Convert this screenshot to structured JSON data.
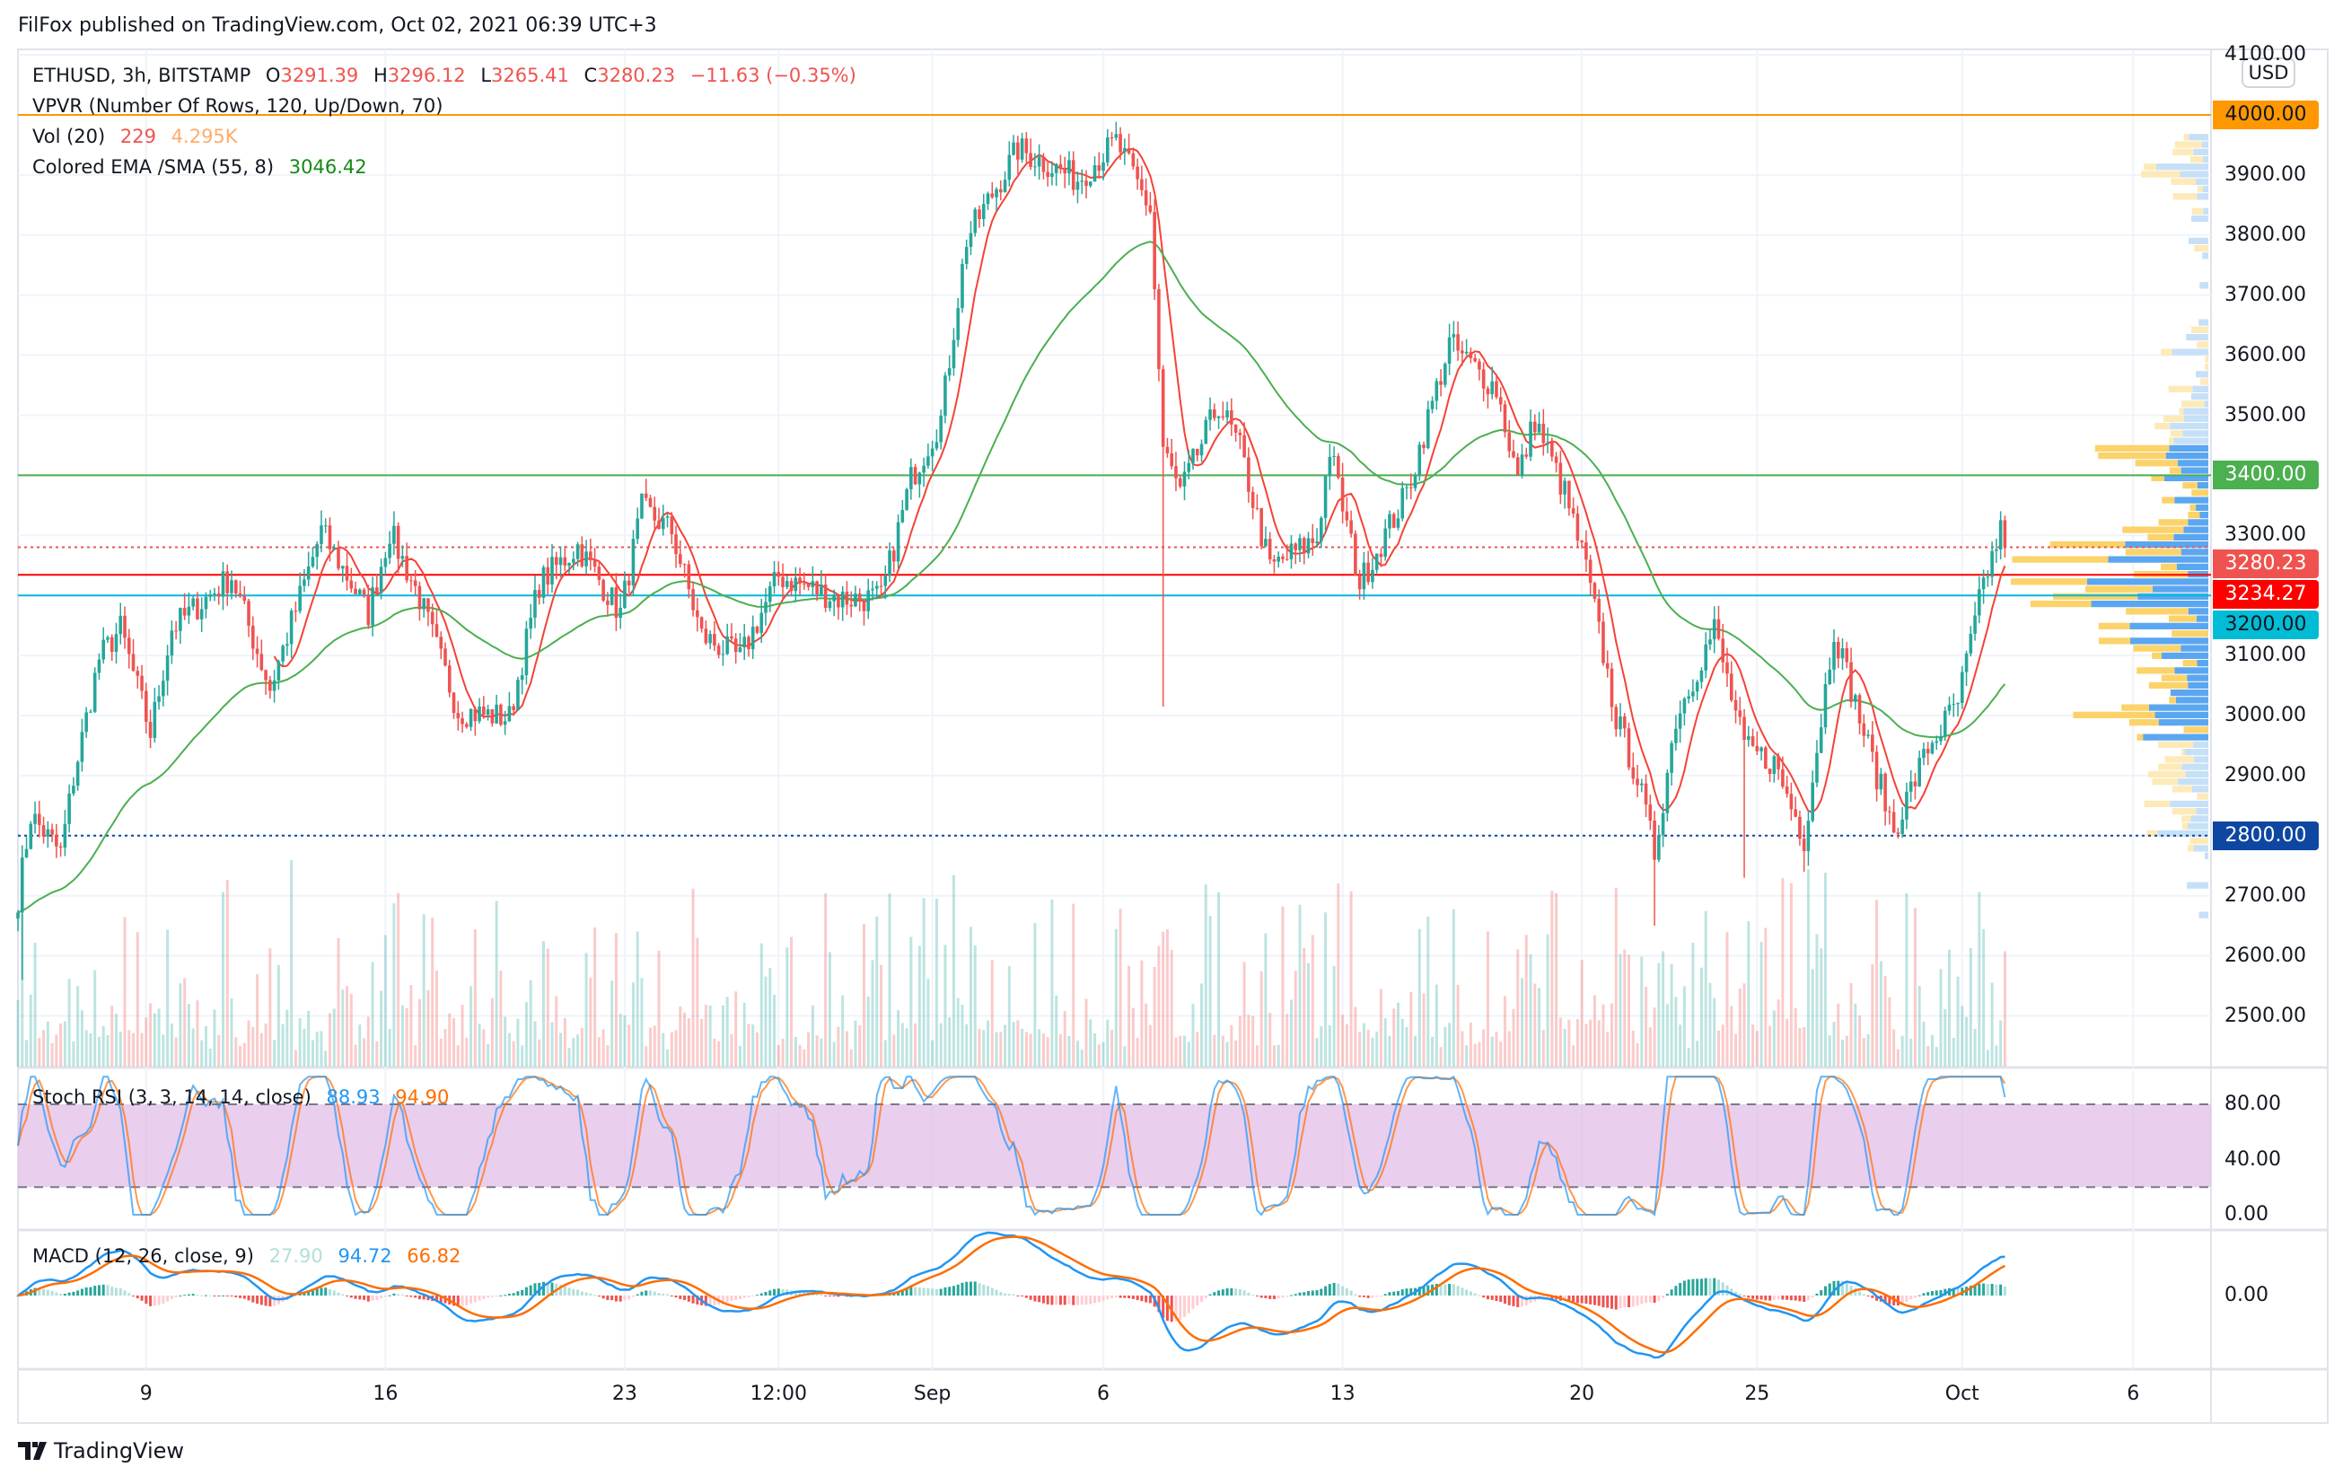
{
  "publish_line": "FilFox published on TradingView.com, Oct 02, 2021 06:39 UTC+3",
  "legend": {
    "symbol": "ETHUSD, 3h, BITSTAMP",
    "o_label": "O",
    "o": "3291.39",
    "h_label": "H",
    "h": "3296.12",
    "l_label": "L",
    "l": "3265.41",
    "c_label": "C",
    "c": "3280.23",
    "change": "−11.63 (−0.35%)",
    "vpvr": "VPVR (Number Of Rows, 120, Up/Down, 70)",
    "vol_label": "Vol (20)",
    "vol_value": "229",
    "vol_ma": "4.295K",
    "ema_label": "Colored EMA /SMA (55, 8)",
    "ema_value": "3046.42",
    "stoch_label": "Stoch RSI (3, 3, 14, 14, close)",
    "stoch_k": "88.93",
    "stoch_d": "94.90",
    "macd_label": "MACD (12, 26, close, 9)",
    "macd_hist": "27.90",
    "macd_line": "94.72",
    "macd_signal": "66.82"
  },
  "currency": "USD",
  "brand": "TradingView",
  "colors": {
    "up": "#26a69a",
    "down": "#ef5350",
    "ema": "#4caf50",
    "sma": "#f44336",
    "stoch_k": "#2196f3",
    "stoch_d": "#ff6d00",
    "macd": "#2196f3",
    "signal": "#ff6d00",
    "stoch_band": "#e1bee7"
  },
  "chart_data": {
    "type": "candlestick",
    "interval": "3h",
    "price_axis_ticks": [
      "4100.00",
      "3900.00",
      "3800.00",
      "3700.00",
      "3600.00",
      "3500.00",
      "3300.00",
      "3100.00",
      "3000.00",
      "2900.00",
      "2700.00",
      "2600.00",
      "2500.00"
    ],
    "price_range": [
      2470,
      4120
    ],
    "horizontal_levels": [
      {
        "price": 4000,
        "label": "4000.00",
        "color": "#ff9800",
        "style": "solid"
      },
      {
        "price": 3400,
        "label": "3400.00",
        "color": "#4caf50",
        "style": "solid"
      },
      {
        "price": 3280.23,
        "label": "3280.23",
        "color": "#ef5350",
        "style": "dotted"
      },
      {
        "price": 3234.27,
        "label": "3234.27",
        "color": "#ff0000",
        "style": "solid"
      },
      {
        "price": 3200,
        "label": "3200.00",
        "color": "#00bcd4",
        "style": "solid"
      },
      {
        "price": 2800,
        "label": "2800.00",
        "color": "#0d47a1",
        "style": "dotted"
      }
    ],
    "close_waypoints": [
      [
        0,
        2697
      ],
      [
        3,
        2834
      ],
      [
        10,
        2771
      ],
      [
        13,
        2896
      ],
      [
        19,
        3095
      ],
      [
        24,
        3145
      ],
      [
        31,
        2971
      ],
      [
        36,
        3145
      ],
      [
        50,
        3232
      ],
      [
        59,
        3045
      ],
      [
        71,
        3307
      ],
      [
        82,
        3170
      ],
      [
        87,
        3307
      ],
      [
        94,
        3195
      ],
      [
        103,
        3008
      ],
      [
        115,
        2996
      ],
      [
        122,
        3220
      ],
      [
        131,
        3282
      ],
      [
        141,
        3170
      ],
      [
        146,
        3345
      ],
      [
        153,
        3307
      ],
      [
        160,
        3133
      ],
      [
        169,
        3095
      ],
      [
        178,
        3232
      ],
      [
        192,
        3195
      ],
      [
        202,
        3195
      ],
      [
        209,
        3394
      ],
      [
        216,
        3494
      ],
      [
        222,
        3793
      ],
      [
        234,
        3943
      ],
      [
        248,
        3893
      ],
      [
        257,
        3955
      ],
      [
        265,
        3843
      ],
      [
        268,
        3444
      ],
      [
        272,
        3370
      ],
      [
        281,
        3519
      ],
      [
        286,
        3444
      ],
      [
        293,
        3245
      ],
      [
        304,
        3295
      ],
      [
        307,
        3444
      ],
      [
        314,
        3220
      ],
      [
        325,
        3370
      ],
      [
        335,
        3619
      ],
      [
        346,
        3544
      ],
      [
        351,
        3394
      ],
      [
        355,
        3494
      ],
      [
        362,
        3370
      ],
      [
        367,
        3245
      ],
      [
        374,
        2996
      ],
      [
        379,
        2896
      ],
      [
        383,
        2771
      ],
      [
        388,
        2996
      ],
      [
        397,
        3145
      ],
      [
        404,
        2946
      ],
      [
        411,
        2921
      ],
      [
        418,
        2796
      ],
      [
        425,
        3145
      ],
      [
        432,
        2971
      ],
      [
        439,
        2809
      ],
      [
        447,
        2946
      ],
      [
        454,
        3021
      ],
      [
        460,
        3220
      ],
      [
        464,
        3307
      ],
      [
        465,
        3280.23
      ]
    ],
    "time_ticks": [
      {
        "bar": 30,
        "label": "9"
      },
      {
        "bar": 86,
        "label": "16"
      },
      {
        "bar": 142,
        "label": "23"
      },
      {
        "bar": 178,
        "label": "12:00"
      },
      {
        "bar": 214,
        "label": "Sep"
      },
      {
        "bar": 254,
        "label": "6"
      },
      {
        "bar": 310,
        "label": "13"
      },
      {
        "bar": 366,
        "label": "20"
      },
      {
        "bar": 407,
        "label": "25"
      },
      {
        "bar": 455,
        "label": "Oct"
      },
      {
        "bar": 495,
        "label": "6"
      }
    ],
    "stoch_axis_ticks": [
      "80.00",
      "40.00",
      "0.00"
    ],
    "stoch_band": [
      20,
      80
    ],
    "macd_axis_ticks": [
      "0.00"
    ]
  }
}
